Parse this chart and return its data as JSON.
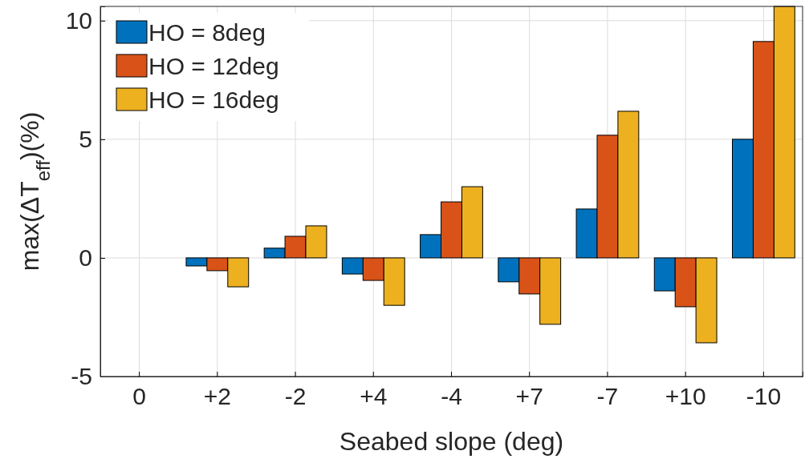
{
  "chart_data": {
    "type": "bar",
    "xlabel": "Seabed slope (deg)",
    "ylabel": "max(ΔT$_{eff}$)(%)",
    "categories": [
      "0",
      "+2",
      "-2",
      "+4",
      "-4",
      "+7",
      "-7",
      "+10",
      "-10"
    ],
    "series": [
      {
        "name": "HO = 8deg",
        "color": "#0072bd",
        "values": [
          0,
          -0.34,
          0.41,
          -0.68,
          0.98,
          -1.01,
          2.06,
          -1.39,
          5.0
        ]
      },
      {
        "name": "HO = 12deg",
        "color": "#d95319",
        "values": [
          0,
          -0.54,
          0.91,
          -0.95,
          2.36,
          -1.52,
          5.17,
          -2.06,
          9.12
        ]
      },
      {
        "name": "HO = 16deg",
        "color": "#edb120",
        "values": [
          0,
          -1.22,
          1.35,
          -2.0,
          3.0,
          -2.8,
          6.18,
          -3.58,
          10.6
        ]
      }
    ],
    "ylim": [
      -5,
      10.6
    ],
    "yticks": [
      -5,
      0,
      5,
      10
    ],
    "grid": true,
    "legend": "top left"
  }
}
